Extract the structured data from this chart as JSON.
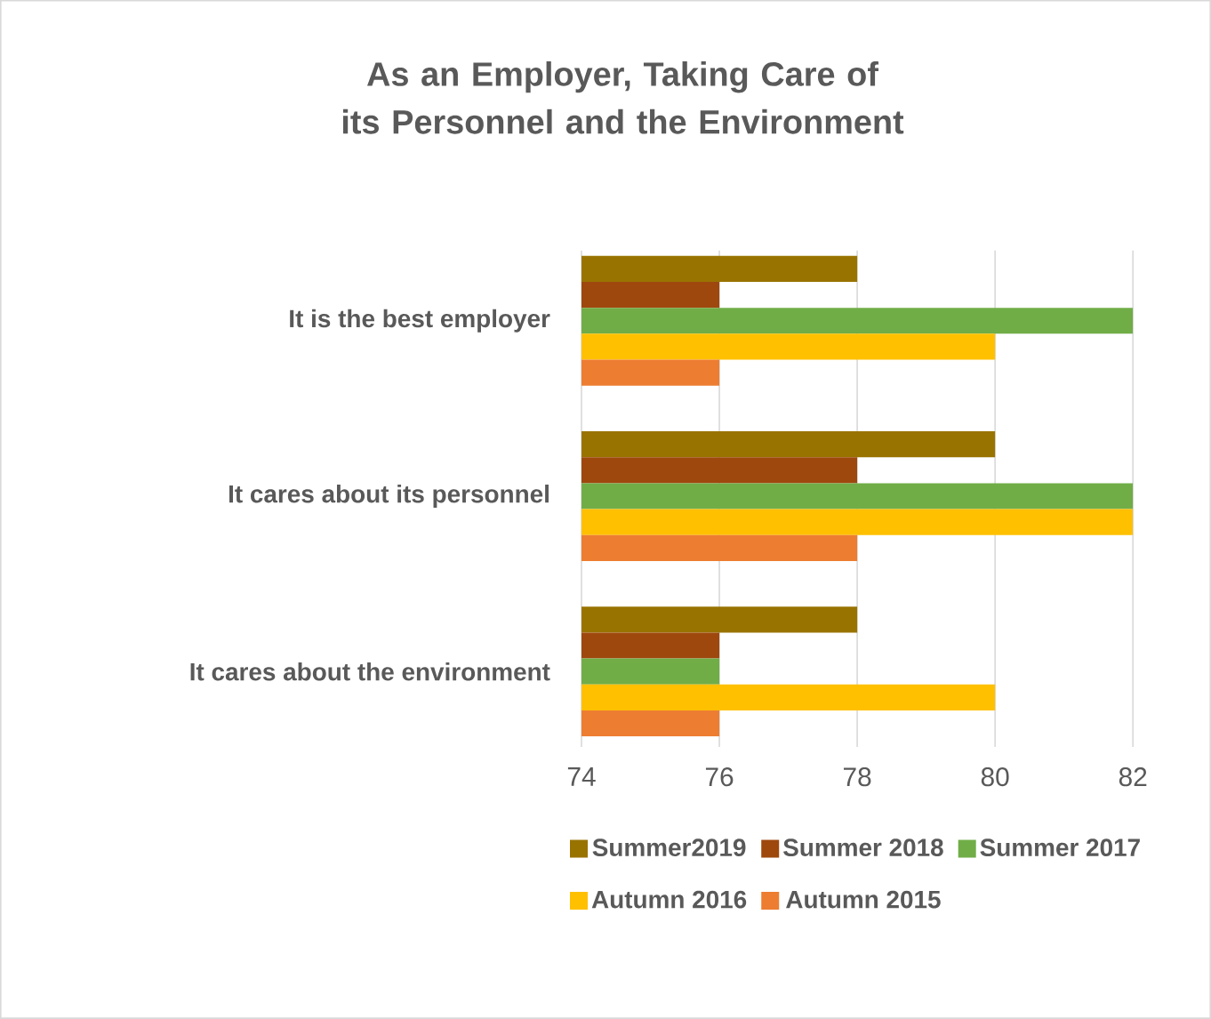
{
  "chart_data": {
    "type": "bar",
    "orientation": "horizontal",
    "title": "As an Employer, Taking Care of its Personnel and the Environment",
    "categories": [
      "It is the best employer",
      "It cares about its personnel",
      "It cares about the environment"
    ],
    "series": [
      {
        "name": "Summer2019",
        "color": "#997300",
        "values": [
          78,
          80,
          78
        ]
      },
      {
        "name": "Summer 2018",
        "color": "#9e480e",
        "values": [
          76,
          78,
          76
        ]
      },
      {
        "name": "Summer 2017",
        "color": "#70ad47",
        "values": [
          82,
          82,
          76
        ]
      },
      {
        "name": "Autumn 2016",
        "color": "#ffc000",
        "values": [
          80,
          82,
          80
        ]
      },
      {
        "name": "Autumn 2015",
        "color": "#ed7d31",
        "values": [
          76,
          78,
          76
        ]
      }
    ],
    "xlim": [
      74,
      82
    ],
    "xticks": [
      74,
      76,
      78,
      80,
      82
    ],
    "grid": "x",
    "legend": "bottom"
  }
}
